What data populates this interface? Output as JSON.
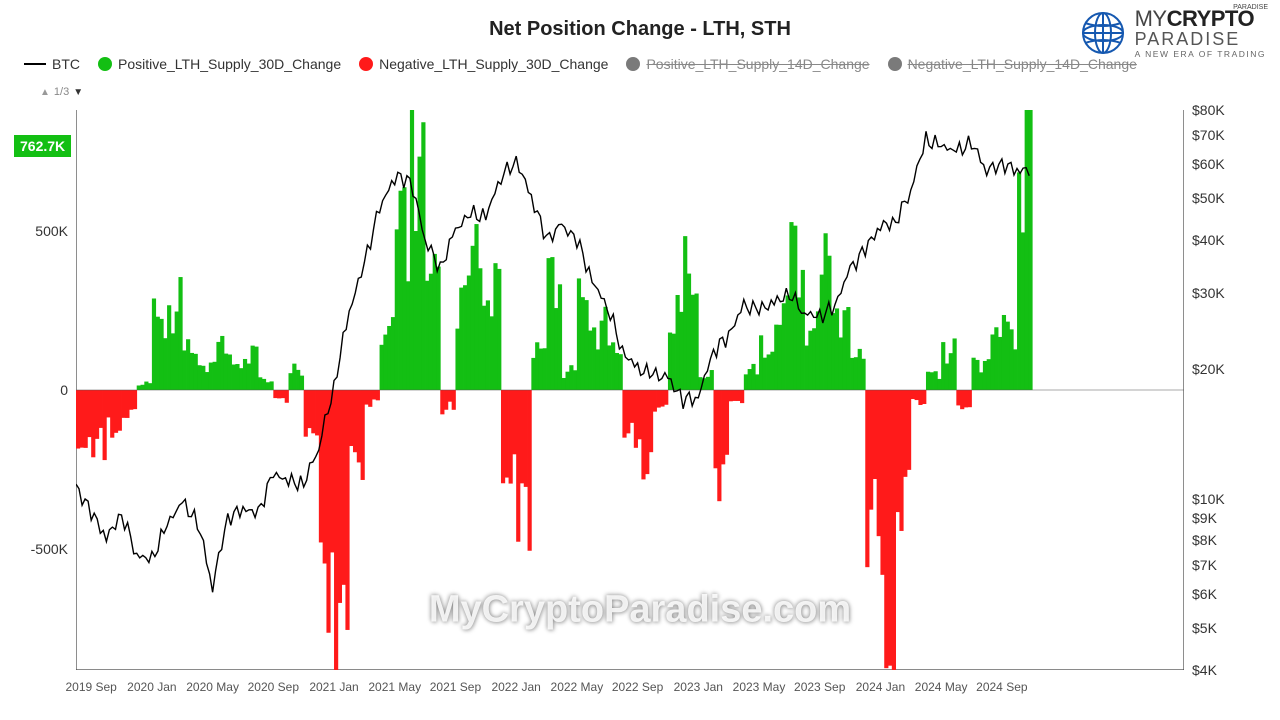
{
  "title": "Net Position Change - LTH, STH",
  "logo": {
    "brand_a": "MY",
    "brand_b": "CRYPTO",
    "brand_c": "PARADISE",
    "tagline": "A NEW ERA OF TRADING"
  },
  "legend": {
    "btc": "BTC",
    "pos30": "Positive_LTH_Supply_30D_Change",
    "neg30": "Negative_LTH_Supply_30D_Change",
    "pos14": "Positive_LTH_Supply_14D_Change",
    "neg14": "Negative_LTH_Supply_14D_Change"
  },
  "pager": {
    "text": "1/3"
  },
  "badge": {
    "value": "762.7K"
  },
  "watermark": "MyCryptoParadise.com",
  "colors": {
    "btc_line": "#000000",
    "positive": "#13bf13",
    "negative": "#ff1a1a",
    "disabled": "#7a7a7a",
    "axis": "#333333",
    "background": "#ffffff"
  },
  "chart": {
    "left_axis": {
      "domain": [
        -880,
        880
      ],
      "ticks": [
        {
          "v": 500,
          "label": "500K"
        },
        {
          "v": 0,
          "label": "0"
        },
        {
          "v": -500,
          "label": "-500K"
        }
      ],
      "badge_value": 762.7
    },
    "right_axis": {
      "type": "log",
      "domain_log": [
        3.602,
        4.903
      ],
      "ticks": [
        {
          "v": 80000,
          "label": "$80K"
        },
        {
          "v": 70000,
          "label": "$70K"
        },
        {
          "v": 60000,
          "label": "$60K"
        },
        {
          "v": 50000,
          "label": "$50K"
        },
        {
          "v": 40000,
          "label": "$40K"
        },
        {
          "v": 30000,
          "label": "$30K"
        },
        {
          "v": 20000,
          "label": "$20K"
        },
        {
          "v": 10000,
          "label": "$10K"
        },
        {
          "v": 9000,
          "label": "$9K"
        },
        {
          "v": 8000,
          "label": "$8K"
        },
        {
          "v": 7000,
          "label": "$7K"
        },
        {
          "v": 6000,
          "label": "$6K"
        },
        {
          "v": 5000,
          "label": "$5K"
        },
        {
          "v": 4000,
          "label": "$4K"
        }
      ]
    },
    "x_axis": {
      "domain": [
        0,
        73
      ],
      "ticks": [
        {
          "i": 1,
          "label": "2019 Sep"
        },
        {
          "i": 5,
          "label": "2020 Jan"
        },
        {
          "i": 9,
          "label": "2020 May"
        },
        {
          "i": 13,
          "label": "2020 Sep"
        },
        {
          "i": 17,
          "label": "2021 Jan"
        },
        {
          "i": 21,
          "label": "2021 May"
        },
        {
          "i": 25,
          "label": "2021 Sep"
        },
        {
          "i": 29,
          "label": "2022 Jan"
        },
        {
          "i": 33,
          "label": "2022 May"
        },
        {
          "i": 37,
          "label": "2022 Sep"
        },
        {
          "i": 41,
          "label": "2023 Jan"
        },
        {
          "i": 45,
          "label": "2023 May"
        },
        {
          "i": 49,
          "label": "2023 Sep"
        },
        {
          "i": 53,
          "label": "2024 Jan"
        },
        {
          "i": 57,
          "label": "2024 May"
        },
        {
          "i": 61,
          "label": "2024 Sep"
        }
      ]
    },
    "btc_price": [
      10600,
      9300,
      8100,
      9200,
      7400,
      7200,
      8700,
      9800,
      8800,
      6200,
      9000,
      9500,
      9200,
      11400,
      11000,
      10800,
      13200,
      18000,
      27000,
      35000,
      47000,
      56000,
      55000,
      40000,
      34000,
      42000,
      46000,
      45000,
      56000,
      61000,
      50000,
      40000,
      43000,
      40000,
      32000,
      28000,
      22000,
      20000,
      19500,
      19000,
      17000,
      17200,
      22000,
      24000,
      28000,
      27500,
      28500,
      30000,
      27000,
      26500,
      28000,
      34000,
      38000,
      43000,
      44000,
      52000,
      68000,
      66000,
      64000,
      67000,
      58000,
      60000,
      58000
    ],
    "supply_change": [
      -160,
      -180,
      -120,
      -80,
      20,
      220,
      260,
      120,
      80,
      130,
      90,
      110,
      30,
      -30,
      60,
      -150,
      -550,
      -780,
      -210,
      -40,
      200,
      520,
      780,
      350,
      -60,
      300,
      420,
      340,
      -250,
      -400,
      120,
      380,
      60,
      280,
      200,
      120,
      -150,
      -220,
      -60,
      220,
      350,
      45,
      -250,
      -40,
      60,
      130,
      230,
      420,
      200,
      380,
      250,
      100,
      -420,
      -800,
      -350,
      -40,
      50,
      130,
      -50,
      90,
      160,
      200,
      763
    ]
  }
}
